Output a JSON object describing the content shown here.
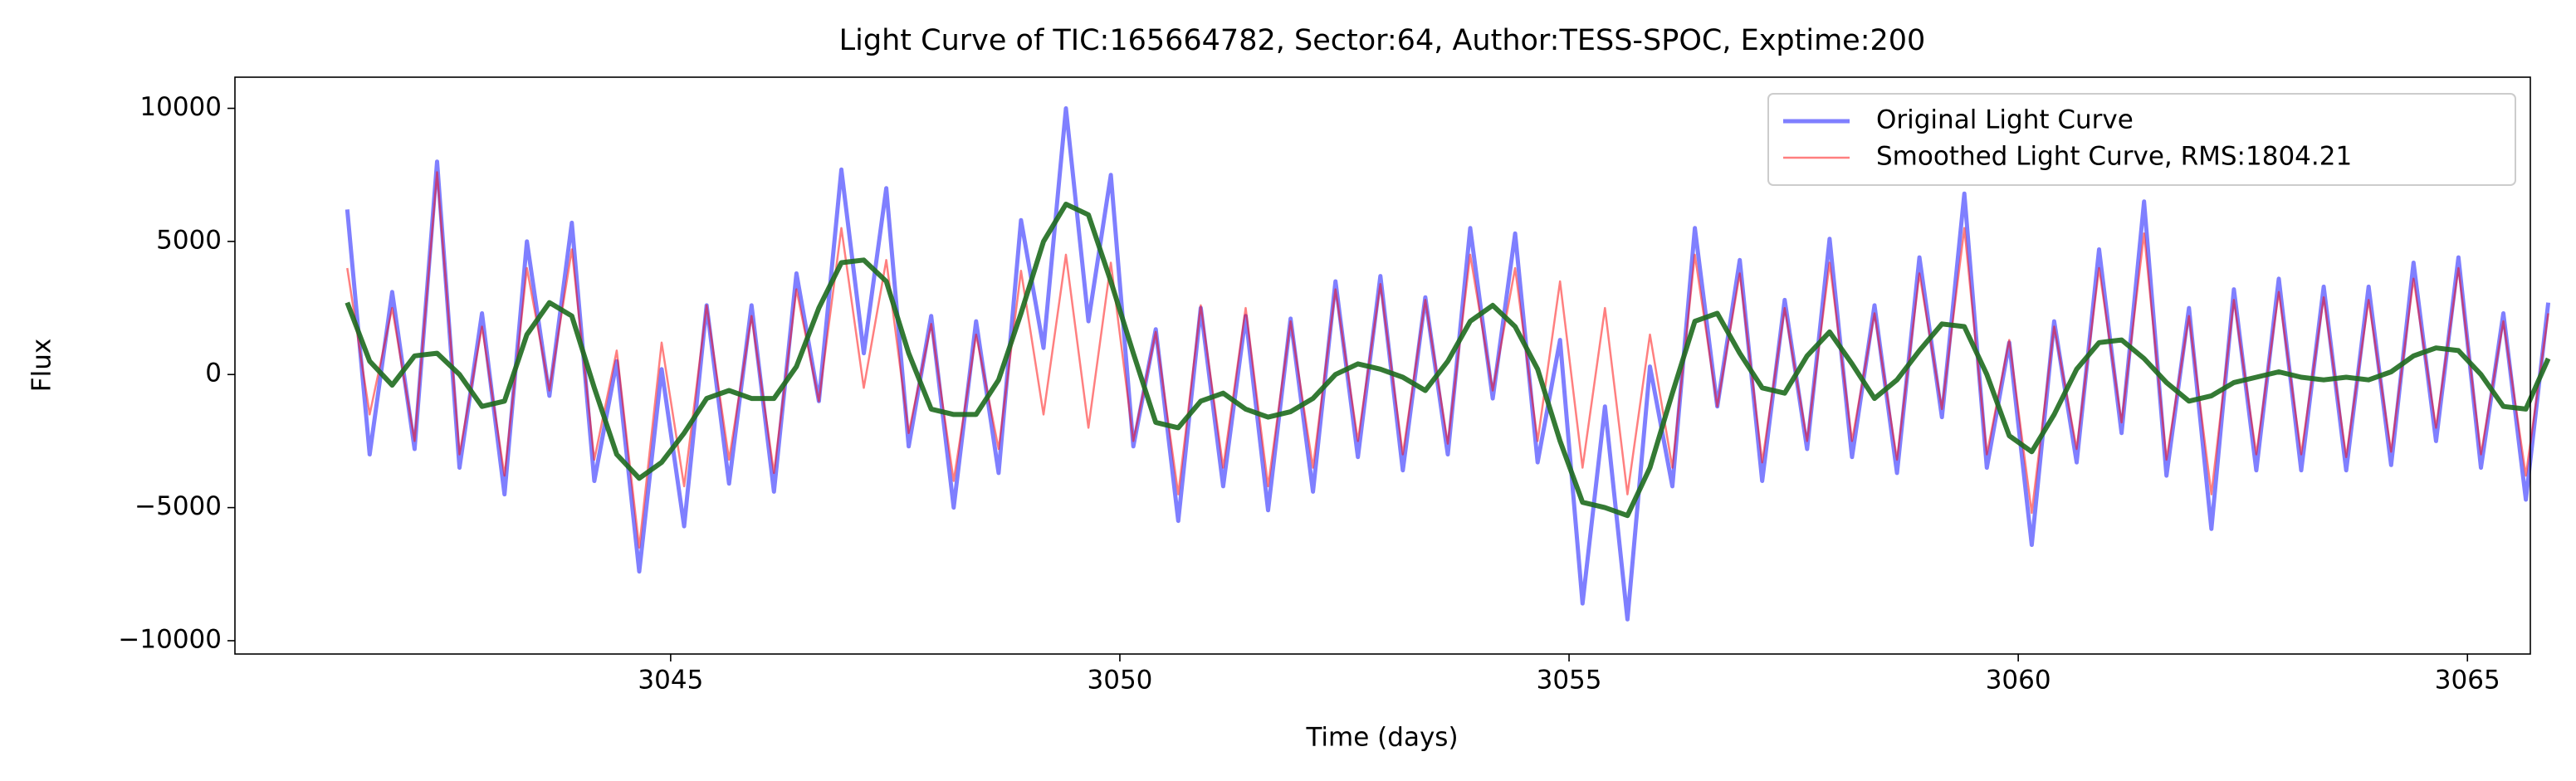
{
  "chart_data": {
    "type": "line",
    "title": "Light Curve of TIC:165664782, Sector:64, Author:TESS-SPOC, Exptime:200",
    "x_label": "Time (days)",
    "y_label": "Flux",
    "xlim": [
      3040.15,
      3065.7
    ],
    "ylim": [
      -10500,
      11170
    ],
    "xticks": [
      3045,
      3050,
      3055,
      3060,
      3065
    ],
    "yticks": [
      {
        "value": -10000,
        "label": "−10000"
      },
      {
        "value": -5000,
        "label": "−5000"
      },
      0,
      5000,
      10000
    ],
    "legend": "upper right",
    "x": [
      3041.4,
      3041.65,
      3041.9,
      3042.15,
      3042.4,
      3042.65,
      3042.9,
      3043.15,
      3043.4,
      3043.65,
      3043.9,
      3044.15,
      3044.4,
      3044.65,
      3044.9,
      3045.15,
      3045.4,
      3045.65,
      3045.9,
      3046.15,
      3046.4,
      3046.65,
      3046.9,
      3047.15,
      3047.4,
      3047.65,
      3047.9,
      3048.15,
      3048.4,
      3048.65,
      3048.9,
      3049.15,
      3049.4,
      3049.65,
      3049.9,
      3050.15,
      3050.4,
      3050.65,
      3050.9,
      3051.15,
      3051.4,
      3051.65,
      3051.9,
      3052.15,
      3052.4,
      3052.65,
      3052.9,
      3053.15,
      3053.4,
      3053.65,
      3053.9,
      3054.15,
      3054.4,
      3054.65,
      3054.9,
      3055.15,
      3055.4,
      3055.65,
      3055.9,
      3056.15,
      3056.4,
      3056.65,
      3056.9,
      3057.15,
      3057.4,
      3057.65,
      3057.9,
      3058.15,
      3058.4,
      3058.65,
      3058.9,
      3059.15,
      3059.4,
      3059.65,
      3059.9,
      3060.15,
      3060.4,
      3060.65,
      3060.9,
      3061.15,
      3061.4,
      3061.65,
      3061.9,
      3062.15,
      3062.4,
      3062.65,
      3062.9,
      3063.15,
      3063.4,
      3063.65,
      3063.9,
      3064.15,
      3064.4,
      3064.65,
      3064.9,
      3065.15,
      3065.4,
      3065.65,
      3065.9
    ],
    "series": [
      {
        "name": "Original Light Curve",
        "color": "#0000ff",
        "alpha": 0.5,
        "width": 5,
        "values": [
          6200,
          -3000,
          3100,
          -2800,
          8000,
          -3500,
          2300,
          -4500,
          5000,
          -800,
          5700,
          -4000,
          500,
          -7400,
          200,
          -5700,
          2600,
          -4100,
          2600,
          -4400,
          3800,
          -1000,
          7700,
          800,
          7000,
          -2700,
          2200,
          -5000,
          2000,
          -3700,
          5800,
          1000,
          10000,
          2000,
          7500,
          -2700,
          1700,
          -5500,
          2500,
          -4200,
          2200,
          -5100,
          2100,
          -4400,
          3500,
          -3100,
          3700,
          -3600,
          2900,
          -3000,
          5500,
          -900,
          5300,
          -3300,
          1300,
          -8600,
          -1200,
          -9200,
          300,
          -4200,
          5500,
          -1200,
          4300,
          -4000,
          2800,
          -2800,
          5100,
          -3100,
          2600,
          -3700,
          4400,
          -1600,
          6800,
          -3500,
          1200,
          -6400,
          2000,
          -3300,
          4700,
          -2200,
          6500,
          -3800,
          2500,
          -5800,
          3200,
          -3600,
          3600,
          -3600,
          3300,
          -3600,
          3300,
          -3400,
          4200,
          -2500,
          4400,
          -3500,
          2300,
          -4700,
          2700
        ]
      },
      {
        "name": "Smoothed Light Curve, RMS:1804.21",
        "color": "#ff0000",
        "alpha": 0.5,
        "width": 2.5,
        "values": [
          4000,
          -1500,
          2500,
          -2500,
          7600,
          -3000,
          1800,
          -3800,
          4000,
          -600,
          4700,
          -3200,
          900,
          -6500,
          1200,
          -4200,
          2600,
          -3200,
          2200,
          -3700,
          3200,
          -1000,
          5500,
          -500,
          4300,
          -2200,
          1900,
          -4000,
          1500,
          -2800,
          3900,
          -1500,
          4500,
          -2000,
          4200,
          -2500,
          1600,
          -4500,
          2600,
          -3500,
          2500,
          -4200,
          2000,
          -3500,
          3200,
          -2500,
          3400,
          -3000,
          2800,
          -2600,
          4500,
          -600,
          4000,
          -2500,
          3500,
          -3500,
          2500,
          -4500,
          1500,
          -3500,
          4500,
          -1200,
          3800,
          -3300,
          2500,
          -2500,
          4200,
          -2500,
          2300,
          -3200,
          3800,
          -1300,
          5500,
          -3000,
          1300,
          -5200,
          1800,
          -2800,
          4000,
          -1800,
          5300,
          -3200,
          2200,
          -4500,
          2800,
          -3000,
          3100,
          -3000,
          2900,
          -3100,
          2800,
          -2900,
          3600,
          -2000,
          4000,
          -3000,
          2000,
          -3800,
          2300
        ]
      },
      {
        "color": "#1e6b1e",
        "alpha": 0.9,
        "width": 6,
        "values": [
          2700,
          500,
          -400,
          700,
          800,
          0,
          -1200,
          -1000,
          1500,
          2700,
          2200,
          -500,
          -3000,
          -3900,
          -3300,
          -2200,
          -900,
          -600,
          -900,
          -900,
          300,
          2500,
          4200,
          4300,
          3500,
          800,
          -1300,
          -1500,
          -1500,
          -200,
          2300,
          5000,
          6400,
          6000,
          3500,
          800,
          -1800,
          -2000,
          -1000,
          -700,
          -1300,
          -1600,
          -1400,
          -900,
          0,
          400,
          200,
          -100,
          -600,
          500,
          2000,
          2600,
          1800,
          200,
          -2500,
          -4800,
          -5000,
          -5300,
          -3500,
          -700,
          2000,
          2300,
          800,
          -500,
          -700,
          700,
          1600,
          400,
          -900,
          -200,
          900,
          1900,
          1800,
          0,
          -2300,
          -2900,
          -1500,
          200,
          1200,
          1300,
          600,
          -300,
          -1000,
          -800,
          -300,
          -100,
          100,
          -100,
          -200,
          -100,
          -200,
          100,
          700,
          1000,
          900,
          0,
          -1200,
          -1300,
          600
        ]
      }
    ]
  }
}
